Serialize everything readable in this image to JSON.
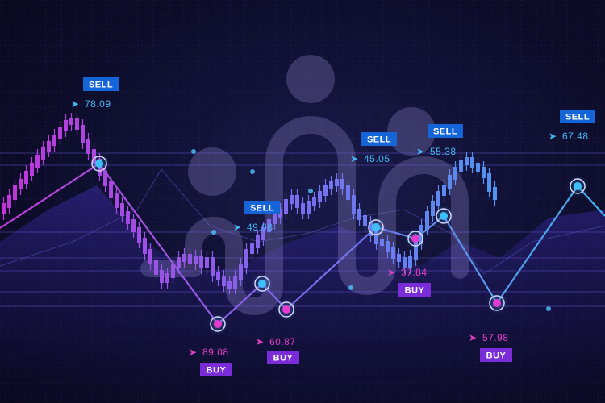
{
  "chart_data": {
    "type": "candlestick",
    "signals": [
      {
        "type": "SELL",
        "value": "78.09"
      },
      {
        "type": "BUY",
        "value": "89.08"
      },
      {
        "type": "SELL",
        "value": "49.08"
      },
      {
        "type": "BUY",
        "value": "60.87"
      },
      {
        "type": "SELL",
        "value": "45.05"
      },
      {
        "type": "BUY",
        "value": "37.84"
      },
      {
        "type": "SELL",
        "value": "55.38"
      },
      {
        "type": "BUY",
        "value": "57.98"
      },
      {
        "type": "SELL",
        "value": "67.48"
      }
    ]
  },
  "colors": {
    "sell_tag": "#1565d8",
    "buy_tag": "#7b2cd9",
    "sell_text": "#43b6f5",
    "buy_text": "#e03ec4"
  }
}
